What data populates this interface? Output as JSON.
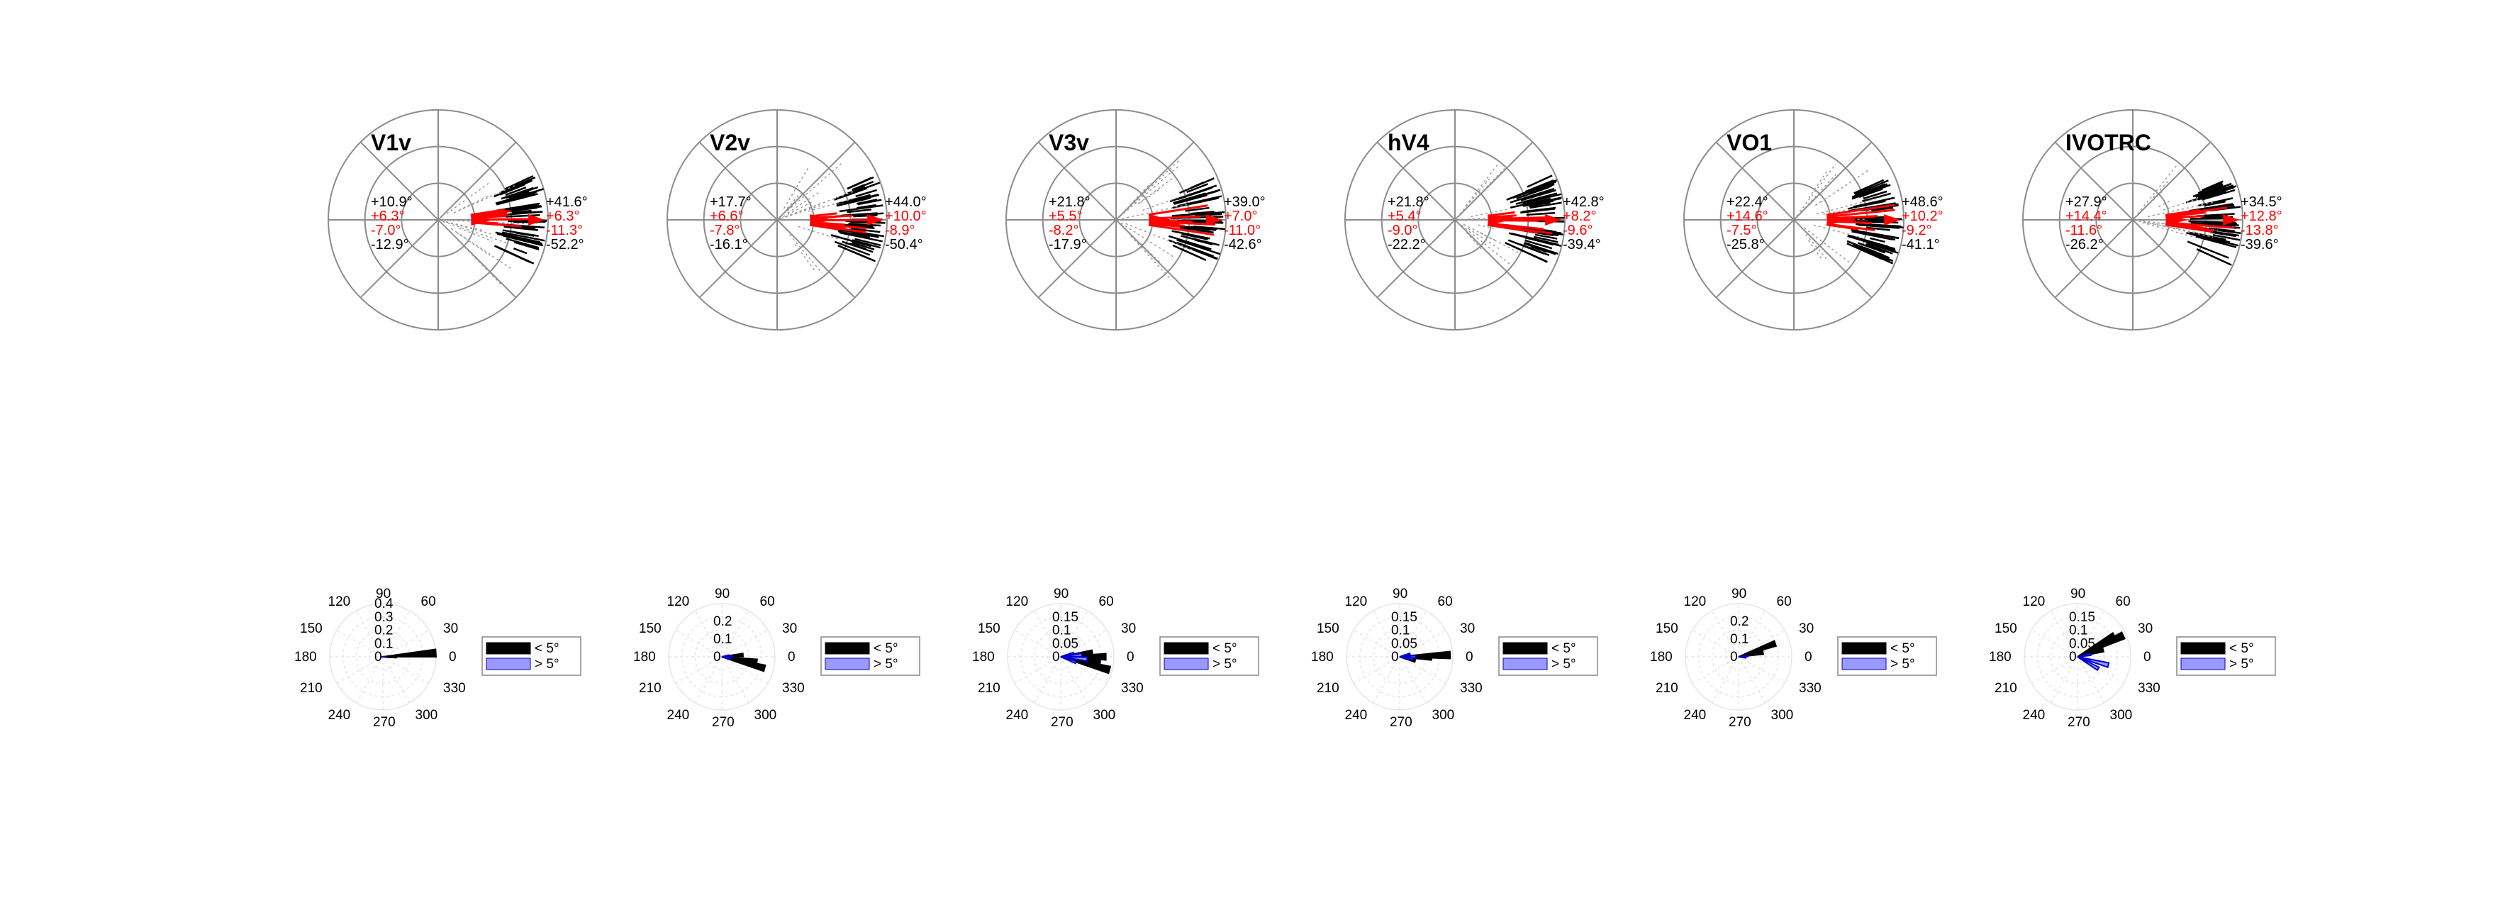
{
  "chart_data": {
    "type": "polar",
    "top_row": [
      {
        "title": "V1v",
        "left": {
          "max": "+10.9°",
          "red_max": "+6.3°",
          "red_min": "-7.0°",
          "min": "-12.9°"
        },
        "right": {
          "max": "+41.6°",
          "red_max": "+6.3°",
          "red_min": "-11.3°",
          "min": "-52.2°"
        }
      },
      {
        "title": "V2v",
        "left": {
          "max": "+17.7°",
          "red_max": "+6.6°",
          "red_min": "-7.8°",
          "min": "-16.1°"
        },
        "right": {
          "max": "+44.0°",
          "red_max": "+10.0°",
          "red_min": "-8.9°",
          "min": "-50.4°"
        }
      },
      {
        "title": "V3v",
        "left": {
          "max": "+21.8°",
          "red_max": "+5.5°",
          "red_min": "-8.2°",
          "min": "-17.9°"
        },
        "right": {
          "max": "+39.0°",
          "red_max": "+7.0°",
          "red_min": "-11.0°",
          "min": "-42.6°"
        }
      },
      {
        "title": "hV4",
        "left": {
          "max": "+21.8°",
          "red_max": "+5.4°",
          "red_min": "-9.0°",
          "min": "-22.2°"
        },
        "right": {
          "max": "+42.8°",
          "red_max": "+8.2°",
          "red_min": "-9.6°",
          "min": "-39.4°"
        }
      },
      {
        "title": "VO1",
        "left": {
          "max": "+22.4°",
          "red_max": "+14.6°",
          "red_min": "-7.5°",
          "min": "-25.8°"
        },
        "right": {
          "max": "+48.6°",
          "red_max": "+10.2°",
          "red_min": "-9.2°",
          "min": "-41.1°"
        }
      },
      {
        "title": "IVOTRC",
        "left": {
          "max": "+27.9°",
          "red_max": "+14.4°",
          "red_min": "-11.6°",
          "min": "-26.2°"
        },
        "right": {
          "max": "+34.5°",
          "red_max": "+12.8°",
          "red_min": "-13.8°",
          "min": "-39.6°"
        }
      }
    ],
    "bottom_row": [
      {
        "rlim": 0.4,
        "r_ticks": [
          "0",
          "0.1",
          "0.2",
          "0.3",
          "0.4"
        ],
        "inner": [
          {
            "theta": 0,
            "r": 0.02
          },
          {
            "theta": 180,
            "r": 0.01
          }
        ],
        "outer": [
          {
            "theta": 4,
            "r": 0.4
          },
          {
            "theta": 0,
            "r": 0.1
          },
          {
            "theta": 358,
            "r": 0.05
          }
        ]
      },
      {
        "rlim": 0.3,
        "r_ticks": [
          "0",
          "0.1",
          "0.2"
        ],
        "inner": [
          {
            "theta": 0,
            "r": 0.06
          },
          {
            "theta": 10,
            "r": 0.04
          },
          {
            "theta": 350,
            "r": 0.05
          }
        ],
        "outer": [
          {
            "theta": 352,
            "r": 0.2
          },
          {
            "theta": 345,
            "r": 0.25
          },
          {
            "theta": 5,
            "r": 0.12
          }
        ]
      },
      {
        "rlim": 0.2,
        "r_ticks": [
          "0",
          "0.05",
          "0.1",
          "0.15"
        ],
        "inner": [
          {
            "theta": 5,
            "r": 0.08
          },
          {
            "theta": 355,
            "r": 0.1
          },
          {
            "theta": 340,
            "r": 0.06
          },
          {
            "theta": 15,
            "r": 0.05
          }
        ],
        "outer": [
          {
            "theta": 345,
            "r": 0.19
          },
          {
            "theta": 355,
            "r": 0.15
          },
          {
            "theta": 8,
            "r": 0.12
          },
          {
            "theta": 0,
            "r": 0.17
          }
        ]
      },
      {
        "rlim": 0.2,
        "r_ticks": [
          "0",
          "0.05",
          "0.1",
          "0.15"
        ],
        "inner": [
          {
            "theta": 0,
            "r": 0.06
          },
          {
            "theta": 350,
            "r": 0.05
          },
          {
            "theta": 15,
            "r": 0.04
          }
        ],
        "outer": [
          {
            "theta": 2,
            "r": 0.19
          },
          {
            "theta": 358,
            "r": 0.12
          },
          {
            "theta": 345,
            "r": 0.06
          }
        ]
      },
      {
        "rlim": 0.3,
        "r_ticks": [
          "0",
          "0.1",
          "0.2"
        ],
        "inner": [
          {
            "theta": 5,
            "r": 0.05
          },
          {
            "theta": 355,
            "r": 0.04
          }
        ],
        "outer": [
          {
            "theta": 20,
            "r": 0.22
          },
          {
            "theta": 10,
            "r": 0.14
          }
        ]
      },
      {
        "rlim": 0.2,
        "r_ticks": [
          "0",
          "0.05",
          "0.1",
          "0.15"
        ],
        "inner": [
          {
            "theta": 345,
            "r": 0.12
          },
          {
            "theta": 330,
            "r": 0.09
          },
          {
            "theta": 10,
            "r": 0.05
          }
        ],
        "outer": [
          {
            "theta": 25,
            "r": 0.19
          },
          {
            "theta": 30,
            "r": 0.16
          },
          {
            "theta": 15,
            "r": 0.1
          }
        ]
      }
    ],
    "angle_ticks": [
      "0",
      "30",
      "60",
      "90",
      "120",
      "150",
      "180",
      "210",
      "240",
      "270",
      "300",
      "330"
    ],
    "legend": [
      "< 5°",
      "> 5°"
    ],
    "colors": {
      "outer_fill": "#000000",
      "inner_fill": "#9999ff",
      "inner_edge": "#0000cc",
      "red": "#ff0000",
      "grid": "#8c8c8c"
    }
  }
}
